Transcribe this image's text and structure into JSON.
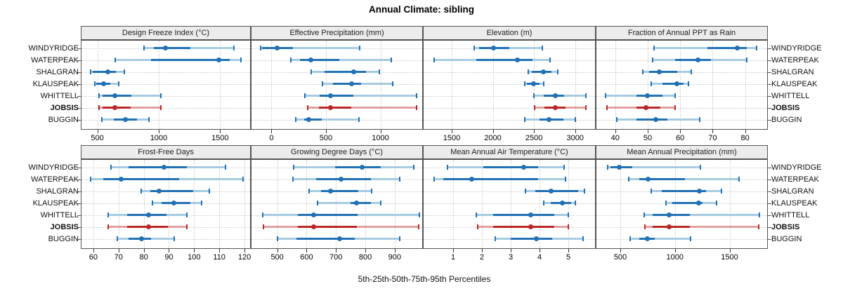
{
  "title": "Annual Climate: sibling",
  "xlabel": "5th-25th-50th-75th-95th Percentiles",
  "sites": [
    "WINDYRIDGE",
    "WATERPEAK",
    "SHALGRAN",
    "KLAUSPEAK",
    "WHITTELL",
    "JOBSIS",
    "BUGGIN"
  ],
  "highlight_site": "JOBSIS",
  "colors": {
    "blue": "#2171b5",
    "blue_light": "#a6cbe0",
    "red": "#bb2726",
    "red_light": "#e2a19e",
    "grid": "#c9c9c9",
    "strip_bg": "#ececec",
    "border": "#555555"
  },
  "chart_data": [
    {
      "type": "dotplot",
      "title": "Design Freeze Index (°C)",
      "xticks": [
        500,
        1000,
        1500
      ],
      "xlim": [
        365,
        1750
      ],
      "series": [
        {
          "site": "WINDYRIDGE",
          "p": [
            878,
            960,
            1055,
            1256,
            1610
          ]
        },
        {
          "site": "WATERPEAK",
          "p": [
            645,
            935,
            1490,
            1580,
            1672
          ]
        },
        {
          "site": "SHALGRAN",
          "p": [
            446,
            462,
            583,
            650,
            721
          ]
        },
        {
          "site": "KLAUSPEAK",
          "p": [
            477,
            490,
            552,
            605,
            675
          ]
        },
        {
          "site": "WHITTELL",
          "p": [
            515,
            540,
            645,
            775,
            1019
          ]
        },
        {
          "site": "JOBSIS",
          "p": [
            515,
            545,
            645,
            770,
            1015
          ]
        },
        {
          "site": "BUGGIN",
          "p": [
            535,
            635,
            731,
            825,
            919
          ]
        }
      ]
    },
    {
      "type": "dotplot",
      "title": "Effective Precipitation (mm)",
      "xticks": [
        0,
        500,
        1000
      ],
      "xlim": [
        -190,
        1390
      ],
      "series": [
        {
          "site": "WINDYRIDGE",
          "p": [
            -100,
            -85,
            51,
            196,
            811
          ]
        },
        {
          "site": "WATERPEAK",
          "p": [
            178,
            262,
            362,
            622,
            1100
          ]
        },
        {
          "site": "SHALGRAN",
          "p": [
            367,
            484,
            756,
            867,
            989
          ]
        },
        {
          "site": "KLAUSPEAK",
          "p": [
            471,
            567,
            738,
            822,
            1111
          ]
        },
        {
          "site": "WHITTELL",
          "p": [
            304,
            444,
            544,
            749,
            1333
          ]
        },
        {
          "site": "JOBSIS",
          "p": [
            333,
            433,
            544,
            733,
            1333
          ]
        },
        {
          "site": "BUGGIN",
          "p": [
            222,
            300,
            345,
            460,
            800
          ]
        }
      ]
    },
    {
      "type": "dotplot",
      "title": "Elevation (m)",
      "xticks": [
        1500,
        2000,
        2500,
        3000
      ],
      "xlim": [
        1150,
        3250
      ],
      "series": [
        {
          "site": "WINDYRIDGE",
          "p": [
            1770,
            1830,
            2005,
            2200,
            2600
          ]
        },
        {
          "site": "WATERPEAK",
          "p": [
            1285,
            1800,
            2300,
            2485,
            2695
          ]
        },
        {
          "site": "SHALGRAN",
          "p": [
            2430,
            2470,
            2615,
            2715,
            2785
          ]
        },
        {
          "site": "KLAUSPEAK",
          "p": [
            2385,
            2415,
            2495,
            2570,
            2615
          ]
        },
        {
          "site": "WHITTELL",
          "p": [
            2500,
            2615,
            2755,
            2870,
            3130
          ]
        },
        {
          "site": "JOBSIS",
          "p": [
            2505,
            2630,
            2760,
            2885,
            3130
          ]
        },
        {
          "site": "BUGGIN",
          "p": [
            2385,
            2570,
            2685,
            2855,
            3000
          ]
        }
      ]
    },
    {
      "type": "dotplot",
      "title": "Fraction of Annual PPT as Rain",
      "xticks": [
        40,
        50,
        60,
        70,
        80
      ],
      "xlim": [
        34,
        87
      ],
      "series": [
        {
          "site": "WINDYRIDGE",
          "p": [
            52,
            68.5,
            77.5,
            80.5,
            83.5
          ]
        },
        {
          "site": "WATERPEAK",
          "p": [
            51.5,
            58.5,
            65.5,
            69.5,
            80.5
          ]
        },
        {
          "site": "SHALGRAN",
          "p": [
            48.5,
            50.5,
            53.5,
            59,
            63.5
          ]
        },
        {
          "site": "KLAUSPEAK",
          "p": [
            51,
            54.5,
            59,
            61,
            62.5
          ]
        },
        {
          "site": "WHITTELL",
          "p": [
            37,
            46.5,
            50,
            54.5,
            58.5
          ]
        },
        {
          "site": "JOBSIS",
          "p": [
            37.5,
            46.5,
            49.5,
            54,
            58.5
          ]
        },
        {
          "site": "BUGGIN",
          "p": [
            40.5,
            46.5,
            52.5,
            56,
            66
          ]
        }
      ]
    },
    {
      "type": "dotplot",
      "title": "Frost-Free Days",
      "xticks": [
        60,
        70,
        80,
        90,
        100,
        110,
        120
      ],
      "xlim": [
        55,
        122.5
      ],
      "series": [
        {
          "site": "WINDYRIDGE",
          "p": [
            67,
            74,
            88,
            97,
            112.5
          ]
        },
        {
          "site": "WATERPEAK",
          "p": [
            59,
            64,
            71,
            94,
            119.5
          ]
        },
        {
          "site": "SHALGRAN",
          "p": [
            79,
            82.5,
            86,
            99.5,
            106
          ]
        },
        {
          "site": "KLAUSPEAK",
          "p": [
            83.5,
            87,
            92,
            98.5,
            103
          ]
        },
        {
          "site": "WHITTELL",
          "p": [
            66,
            73.5,
            82,
            89,
            97
          ]
        },
        {
          "site": "JOBSIS",
          "p": [
            66,
            73.5,
            82,
            89.5,
            97
          ]
        },
        {
          "site": "BUGGIN",
          "p": [
            69.5,
            74,
            79,
            83,
            92
          ]
        }
      ]
    },
    {
      "type": "dotplot",
      "title": "Growing Degree Days (°C)",
      "xticks": [
        500,
        600,
        700,
        800,
        900
      ],
      "xlim": [
        410,
        996
      ],
      "series": [
        {
          "site": "WINDYRIDGE",
          "p": [
            557,
            697,
            789,
            853,
            964
          ]
        },
        {
          "site": "WATERPEAK",
          "p": [
            554,
            633,
            717,
            820,
            916
          ]
        },
        {
          "site": "SHALGRAN",
          "p": [
            609,
            649,
            681,
            777,
            822
          ]
        },
        {
          "site": "KLAUSPEAK",
          "p": [
            637,
            749,
            771,
            820,
            853
          ]
        },
        {
          "site": "WHITTELL",
          "p": [
            450,
            570,
            623,
            773,
            985
          ]
        },
        {
          "site": "JOBSIS",
          "p": [
            452,
            570,
            623,
            772,
            982
          ]
        },
        {
          "site": "BUGGIN",
          "p": [
            500,
            565,
            713,
            765,
            916
          ]
        }
      ]
    },
    {
      "type": "dotplot",
      "title": "Mean Annual Air Temperature (°C)",
      "xticks": [
        1,
        2,
        3,
        4,
        5
      ],
      "xlim": [
        -0.05,
        5.95
      ],
      "series": [
        {
          "site": "WINDYRIDGE",
          "p": [
            0.8,
            2.05,
            3.45,
            3.95,
            4.85
          ]
        },
        {
          "site": "WATERPEAK",
          "p": [
            0.35,
            0.65,
            1.65,
            3.95,
            4.9
          ]
        },
        {
          "site": "SHALGRAN",
          "p": [
            3.5,
            3.85,
            4.4,
            5.35,
            5.55
          ]
        },
        {
          "site": "KLAUSPEAK",
          "p": [
            4.15,
            4.4,
            4.8,
            5.1,
            5.25
          ]
        },
        {
          "site": "WHITTELL",
          "p": [
            1.8,
            2.4,
            3.7,
            4.5,
            5.0
          ]
        },
        {
          "site": "JOBSIS",
          "p": [
            1.85,
            2.4,
            3.7,
            4.5,
            5.0
          ]
        },
        {
          "site": "BUGGIN",
          "p": [
            2.45,
            3.0,
            3.9,
            4.45,
            5.5
          ]
        }
      ]
    },
    {
      "type": "dotplot",
      "title": "Mean Annual Precipitation (mm)",
      "xticks": [
        500,
        1000,
        1500
      ],
      "xlim": [
        275,
        1850
      ],
      "series": [
        {
          "site": "WINDYRIDGE",
          "p": [
            385,
            412,
            489,
            610,
            1232
          ]
        },
        {
          "site": "WATERPEAK",
          "p": [
            580,
            675,
            755,
            1090,
            1585
          ]
        },
        {
          "site": "SHALGRAN",
          "p": [
            785,
            880,
            1225,
            1285,
            1425
          ]
        },
        {
          "site": "KLAUSPEAK",
          "p": [
            920,
            975,
            1215,
            1255,
            1380
          ]
        },
        {
          "site": "WHITTELL",
          "p": [
            720,
            795,
            945,
            1135,
            1770
          ]
        },
        {
          "site": "JOBSIS",
          "p": [
            725,
            795,
            945,
            1135,
            1765
          ]
        },
        {
          "site": "BUGGIN",
          "p": [
            590,
            675,
            750,
            815,
            1145
          ]
        }
      ]
    }
  ]
}
